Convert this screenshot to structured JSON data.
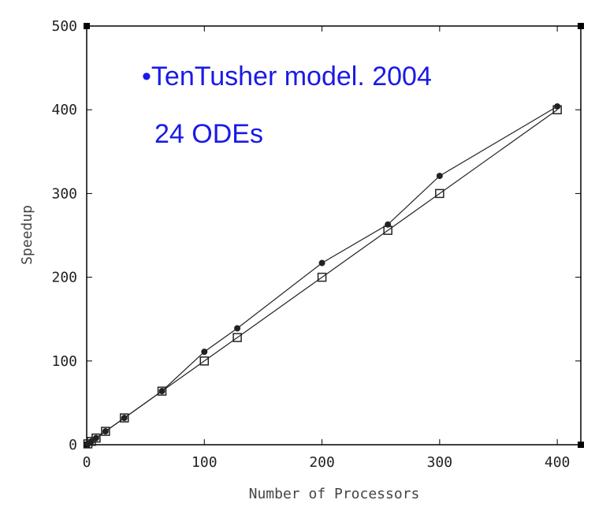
{
  "chart_data": {
    "type": "line",
    "title": "",
    "xlabel": "Number of Processors",
    "ylabel": "Speedup",
    "xlim": [
      0,
      420
    ],
    "ylim": [
      0,
      500
    ],
    "xticks": [
      0,
      100,
      200,
      300,
      400
    ],
    "yticks": [
      0,
      100,
      200,
      300,
      400,
      500
    ],
    "grid": false,
    "annotations": [
      {
        "text": "•TenTusher model. 2004"
      },
      {
        "text": "24 ODEs"
      }
    ],
    "series": [
      {
        "marker": "filled-circle",
        "x": [
          1,
          4,
          8,
          16,
          32,
          64,
          100,
          128,
          200,
          256,
          300,
          400
        ],
        "y": [
          1,
          4,
          8,
          16,
          32,
          64,
          111,
          139,
          217,
          263,
          321,
          404
        ]
      },
      {
        "marker": "open-square",
        "x": [
          1,
          4,
          8,
          16,
          32,
          64,
          100,
          128,
          200,
          256,
          300,
          400
        ],
        "y": [
          1,
          4,
          8,
          16,
          32,
          64,
          100,
          128,
          200,
          256,
          300,
          400
        ]
      }
    ]
  },
  "colors": {
    "annotation": "#1a1ae6",
    "line": "#222222",
    "axis": "#000000"
  }
}
